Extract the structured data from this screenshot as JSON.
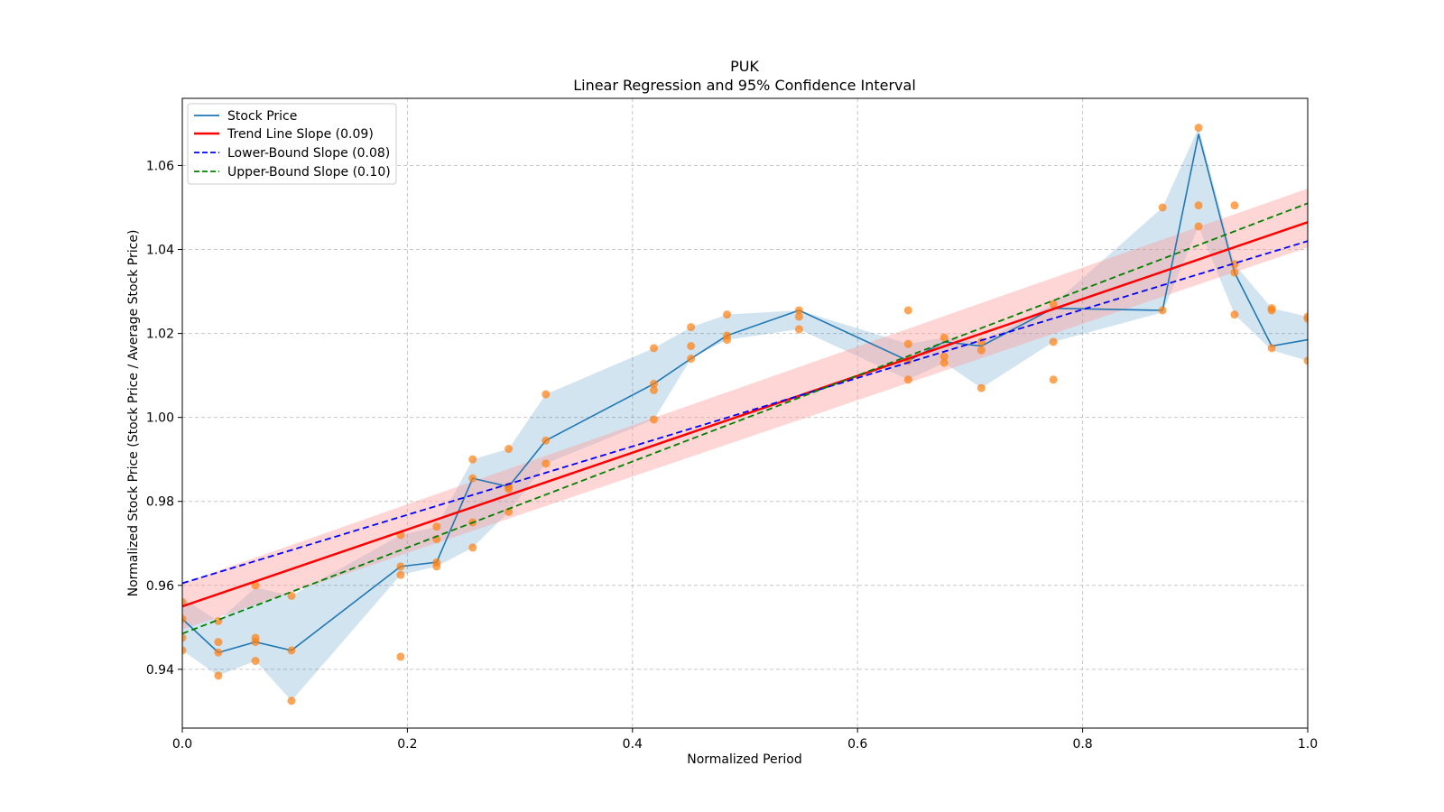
{
  "chart_data": {
    "type": "line",
    "title": "PUK",
    "subtitle": "Linear Regression and 95% Confidence Interval",
    "xlabel": "Normalized Period",
    "ylabel": "Normalized Stock Price (Stock Price / Average Stock Price)",
    "xlim": [
      0.0,
      1.0
    ],
    "ylim": [
      0.926,
      1.076
    ],
    "xticks": [
      0.0,
      0.2,
      0.4,
      0.6,
      0.8,
      1.0
    ],
    "xtick_labels": [
      "0.0",
      "0.2",
      "0.4",
      "0.6",
      "0.8",
      "1.0"
    ],
    "yticks": [
      0.94,
      0.96,
      0.98,
      1.0,
      1.02,
      1.04,
      1.06
    ],
    "ytick_labels": [
      "0.94",
      "0.96",
      "0.98",
      "1.00",
      "1.02",
      "1.04",
      "1.06"
    ],
    "grid": true,
    "legend_position": "top-left",
    "colors": {
      "stock": "#1f77b4",
      "band": "#1f77b4",
      "scatter": "#ff7f0e",
      "trend": "#ff0000",
      "trend_ci": "#ff9999",
      "lower": "#0000ff",
      "upper": "#008000",
      "grid": "#b0b0b0"
    },
    "legend": [
      {
        "label": "Stock Price",
        "color": "#1f77b4",
        "style": "solid"
      },
      {
        "label": "Trend Line Slope (0.09)",
        "color": "#ff0000",
        "style": "solid"
      },
      {
        "label": "Lower-Bound Slope (0.08)",
        "color": "#0000ff",
        "style": "dashed"
      },
      {
        "label": "Upper-Bound Slope (0.10)",
        "color": "#008000",
        "style": "dashed"
      }
    ],
    "stock_price": {
      "x": [
        0.0,
        0.032,
        0.065,
        0.097,
        0.194,
        0.226,
        0.258,
        0.29,
        0.323,
        0.419,
        0.452,
        0.484,
        0.548,
        0.645,
        0.677,
        0.71,
        0.774,
        0.871,
        0.903,
        0.935,
        0.968,
        1.0
      ],
      "y": [
        0.952,
        0.944,
        0.9465,
        0.9445,
        0.9645,
        0.9655,
        0.9855,
        0.9835,
        0.9945,
        1.008,
        1.014,
        1.0195,
        1.0255,
        1.0135,
        1.018,
        1.017,
        1.026,
        1.0255,
        1.0675,
        1.0345,
        1.017,
        1.0185
      ],
      "band_upper": [
        0.957,
        0.9515,
        0.9595,
        0.9575,
        0.972,
        0.974,
        0.99,
        0.9925,
        1.0055,
        1.0165,
        1.0215,
        1.0245,
        1.0255,
        1.0175,
        1.019,
        1.018,
        1.027,
        1.05,
        1.069,
        1.0365,
        1.026,
        1.024
      ],
      "band_lower": [
        0.9445,
        0.9385,
        0.942,
        0.9325,
        0.9625,
        0.9645,
        0.969,
        0.9775,
        0.989,
        0.9995,
        1.014,
        1.0185,
        1.021,
        1.009,
        1.013,
        1.007,
        1.018,
        1.025,
        1.0455,
        1.0245,
        1.016,
        1.0135
      ]
    },
    "scatter": {
      "x": [
        0.0,
        0.0,
        0.0,
        0.0,
        0.032,
        0.032,
        0.032,
        0.032,
        0.065,
        0.065,
        0.065,
        0.065,
        0.097,
        0.097,
        0.097,
        0.194,
        0.194,
        0.194,
        0.194,
        0.226,
        0.226,
        0.226,
        0.226,
        0.258,
        0.258,
        0.258,
        0.258,
        0.29,
        0.29,
        0.29,
        0.29,
        0.323,
        0.323,
        0.323,
        0.419,
        0.419,
        0.419,
        0.419,
        0.452,
        0.452,
        0.452,
        0.484,
        0.484,
        0.484,
        0.548,
        0.548,
        0.548,
        0.645,
        0.645,
        0.645,
        0.645,
        0.677,
        0.677,
        0.677,
        0.71,
        0.71,
        0.71,
        0.774,
        0.774,
        0.774,
        0.871,
        0.871,
        0.903,
        0.903,
        0.903,
        0.935,
        0.935,
        0.935,
        0.935,
        0.968,
        0.968,
        0.968,
        1.0,
        1.0,
        1.0
      ],
      "y": [
        0.956,
        0.952,
        0.9475,
        0.9445,
        0.9515,
        0.9465,
        0.944,
        0.9385,
        0.96,
        0.9475,
        0.9465,
        0.942,
        0.9575,
        0.9445,
        0.9325,
        0.972,
        0.9645,
        0.9625,
        0.943,
        0.974,
        0.971,
        0.9655,
        0.9645,
        0.99,
        0.9855,
        0.975,
        0.969,
        0.9925,
        0.9835,
        0.983,
        0.9775,
        1.0055,
        0.9945,
        0.989,
        1.0165,
        1.008,
        1.0065,
        0.9995,
        1.0215,
        1.017,
        1.014,
        1.0245,
        1.0195,
        1.0185,
        1.0255,
        1.024,
        1.021,
        1.0255,
        1.0175,
        1.0135,
        1.009,
        1.019,
        1.0145,
        1.013,
        1.018,
        1.016,
        1.007,
        1.027,
        1.018,
        1.009,
        1.05,
        1.0255,
        1.069,
        1.0505,
        1.0455,
        1.0505,
        1.0365,
        1.0345,
        1.0245,
        1.026,
        1.0255,
        1.0165,
        1.024,
        1.0235,
        1.0135
      ]
    },
    "trend_line": {
      "x": [
        0.0,
        1.0
      ],
      "y": [
        0.955,
        1.0465
      ],
      "ci_lower": [
        0.9495,
        1.0405
      ],
      "ci_upper": [
        0.9605,
        1.0545
      ]
    },
    "lower_bound_line": {
      "x": [
        0.0,
        1.0
      ],
      "y": [
        0.9605,
        1.042
      ]
    },
    "upper_bound_line": {
      "x": [
        0.0,
        1.0
      ],
      "y": [
        0.9485,
        1.051
      ]
    }
  }
}
